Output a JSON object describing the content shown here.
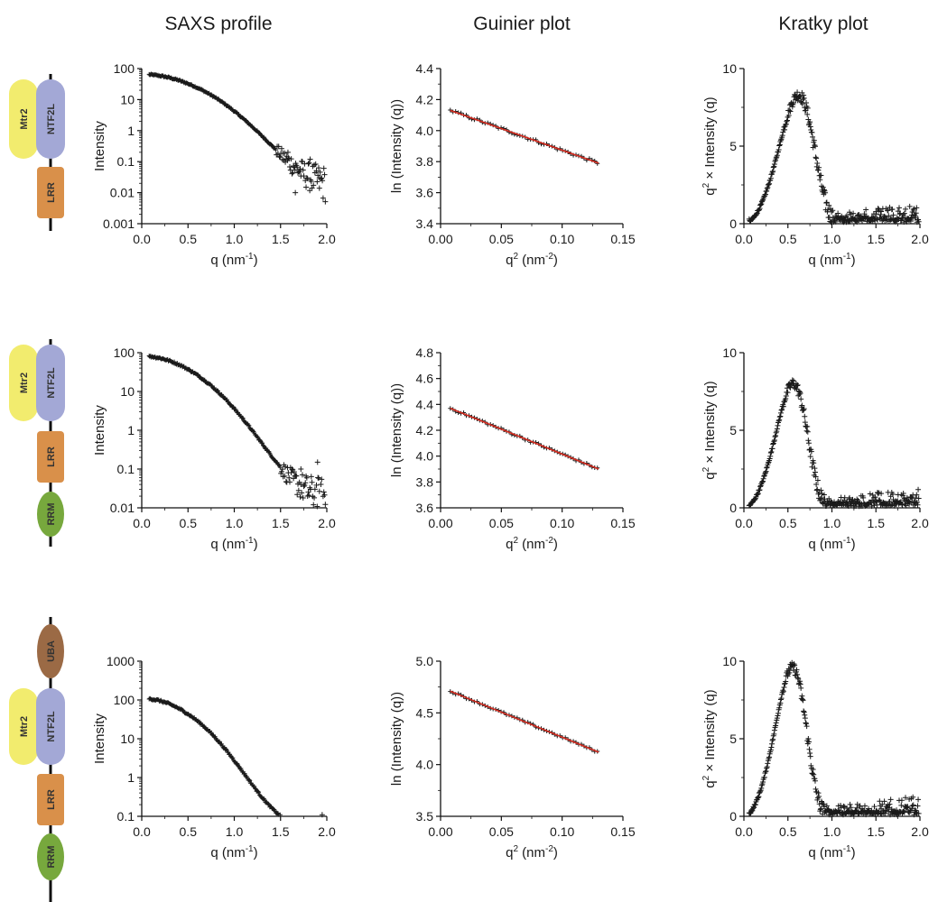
{
  "columns": {
    "saxs": "SAXS profile",
    "guinier": "Guinier plot",
    "kratky": "Kratky plot"
  },
  "colors": {
    "mtr2": "#f2ec6e",
    "ntf2l": "#a3a8d6",
    "lrr": "#d9904a",
    "rrm": "#77a83d",
    "uba": "#9b6a45",
    "fit_line": "#d42a1e",
    "points": "#1a1a1a"
  },
  "constructs": [
    {
      "domains": [
        {
          "key": "mtr2",
          "label": "Mtr2"
        },
        {
          "key": "ntf2l",
          "label": "NTF2L"
        },
        {
          "key": "lrr",
          "label": "LRR"
        }
      ]
    },
    {
      "domains": [
        {
          "key": "mtr2",
          "label": "Mtr2"
        },
        {
          "key": "ntf2l",
          "label": "NTF2L"
        },
        {
          "key": "lrr",
          "label": "LRR"
        },
        {
          "key": "rrm",
          "label": "RRM"
        }
      ]
    },
    {
      "domains": [
        {
          "key": "uba",
          "label": "UBA"
        },
        {
          "key": "mtr2",
          "label": "Mtr2"
        },
        {
          "key": "ntf2l",
          "label": "NTF2L"
        },
        {
          "key": "lrr",
          "label": "LRR"
        },
        {
          "key": "rrm",
          "label": "RRM"
        }
      ]
    }
  ],
  "chart_data": [
    {
      "type": "scatter",
      "row": 0,
      "kind": "saxs",
      "xlabel": "q (nm",
      "xlabel_sup": "-1",
      "xlabel_end": ")",
      "ylabel": "Intensity",
      "xlim": [
        0,
        2
      ],
      "ylim": [
        0.001,
        100
      ],
      "yscale": "log",
      "xticks": [
        "0.0",
        "0.5",
        "1.0",
        "1.5",
        "2.0"
      ],
      "yticks": [
        "0.001",
        "0.01",
        "0.1",
        "1",
        "10",
        "100"
      ],
      "profile": {
        "I0": 65,
        "Rg": 2.9,
        "A": 0.28,
        "n": 4.0
      },
      "noisy_from": 1.45,
      "outliers": [
        [
          1.66,
          0.01
        ],
        [
          1.92,
          0.03
        ],
        [
          1.58,
          0.2
        ],
        [
          1.82,
          0.12
        ]
      ]
    },
    {
      "type": "line",
      "row": 0,
      "kind": "guinier",
      "xlabel": "q",
      "xlabel_sup": "2",
      "xlabel_end": " (nm-2)",
      "ylabel": "ln (Intensity (q))",
      "xlim": [
        0,
        0.15
      ],
      "ylim": [
        3.4,
        4.4
      ],
      "xticks": [
        "0.00",
        "0.05",
        "0.10",
        "0.15"
      ],
      "yticks": [
        "3.4",
        "3.6",
        "3.8",
        "4.0",
        "4.2",
        "4.4"
      ],
      "fit": {
        "x": [
          0.008,
          0.13
        ],
        "y": [
          4.13,
          3.79
        ]
      }
    },
    {
      "type": "scatter",
      "row": 0,
      "kind": "kratky",
      "xlabel": "q (nm",
      "xlabel_sup": "-1",
      "xlabel_end": ")",
      "ylabel": "q2 × Intensity (q)",
      "xlim": [
        0,
        2
      ],
      "ylim": [
        0,
        10
      ],
      "xticks": [
        "0.0",
        "0.5",
        "1.0",
        "1.5",
        "2.0"
      ],
      "yticks": [
        "0",
        "5",
        "10"
      ],
      "peak": {
        "x": 0.62,
        "y": 8.3
      }
    },
    {
      "type": "scatter",
      "row": 1,
      "kind": "saxs",
      "xlabel": "q (nm",
      "xlabel_sup": "-1",
      "xlabel_end": ")",
      "ylabel": "Intensity",
      "xlim": [
        0,
        2
      ],
      "ylim": [
        0.01,
        100
      ],
      "yscale": "log",
      "xticks": [
        "0.0",
        "0.5",
        "1.0",
        "1.5",
        "2.0"
      ],
      "yticks": [
        "0.01",
        "0.1",
        "1",
        "10",
        "100"
      ],
      "profile": {
        "I0": 82,
        "Rg": 3.1,
        "A": 0.26,
        "n": 4.0
      },
      "noisy_from": 1.5,
      "outliers": [
        [
          1.72,
          0.1
        ],
        [
          1.9,
          0.15
        ]
      ]
    },
    {
      "type": "line",
      "row": 1,
      "kind": "guinier",
      "xlabel": "q",
      "xlabel_sup": "2",
      "xlabel_end": " (nm-2)",
      "ylabel": "ln (Intensity (q))",
      "xlim": [
        0,
        0.15
      ],
      "ylim": [
        3.6,
        4.8
      ],
      "xticks": [
        "0.00",
        "0.05",
        "0.10",
        "0.15"
      ],
      "yticks": [
        "3.6",
        "3.8",
        "4.0",
        "4.2",
        "4.4",
        "4.6",
        "4.8"
      ],
      "fit": {
        "x": [
          0.008,
          0.13
        ],
        "y": [
          4.37,
          3.9
        ]
      }
    },
    {
      "type": "scatter",
      "row": 1,
      "kind": "kratky",
      "xlabel": "q (nm",
      "xlabel_sup": "-1",
      "xlabel_end": ")",
      "ylabel": "q2 × Intensity (q)",
      "xlim": [
        0,
        2
      ],
      "ylim": [
        0,
        10
      ],
      "xticks": [
        "0.0",
        "0.5",
        "1.0",
        "1.5",
        "2.0"
      ],
      "yticks": [
        "0",
        "5",
        "10"
      ],
      "peak": {
        "x": 0.56,
        "y": 8.0
      }
    },
    {
      "type": "scatter",
      "row": 2,
      "kind": "saxs",
      "xlabel": "q (nm",
      "xlabel_sup": "-1",
      "xlabel_end": ")",
      "ylabel": "Intensity",
      "xlim": [
        0,
        2
      ],
      "ylim": [
        0.1,
        1000
      ],
      "yscale": "log",
      "xticks": [
        "0.0",
        "0.5",
        "1.0",
        "1.5",
        "2.0"
      ],
      "yticks": [
        "0.1",
        "1",
        "10",
        "100",
        "1000"
      ],
      "profile": {
        "I0": 110,
        "Rg": 3.4,
        "A": 0.42,
        "n": 4.0
      },
      "noisy_from": 1.65,
      "outliers": [
        [
          1.95,
          0.11
        ]
      ]
    },
    {
      "type": "line",
      "row": 2,
      "kind": "guinier",
      "xlabel": "q",
      "xlabel_sup": "2",
      "xlabel_end": " (nm-2)",
      "ylabel": "ln (Intensity (q))",
      "xlim": [
        0,
        0.15
      ],
      "ylim": [
        3.5,
        5.0
      ],
      "xticks": [
        "0.00",
        "0.05",
        "0.10",
        "0.15"
      ],
      "yticks": [
        "3.5",
        "4.0",
        "4.5",
        "5.0"
      ],
      "fit": {
        "x": [
          0.008,
          0.13
        ],
        "y": [
          4.71,
          4.12
        ]
      }
    },
    {
      "type": "scatter",
      "row": 2,
      "kind": "kratky",
      "xlabel": "q (nm",
      "xlabel_sup": "-1",
      "xlabel_end": ")",
      "ylabel": "q2 × Intensity (q)",
      "xlim": [
        0,
        2
      ],
      "ylim": [
        0,
        10
      ],
      "xticks": [
        "0.0",
        "0.5",
        "1.0",
        "1.5",
        "2.0"
      ],
      "yticks": [
        "0",
        "5",
        "10"
      ],
      "peak": {
        "x": 0.55,
        "y": 9.6
      }
    }
  ]
}
